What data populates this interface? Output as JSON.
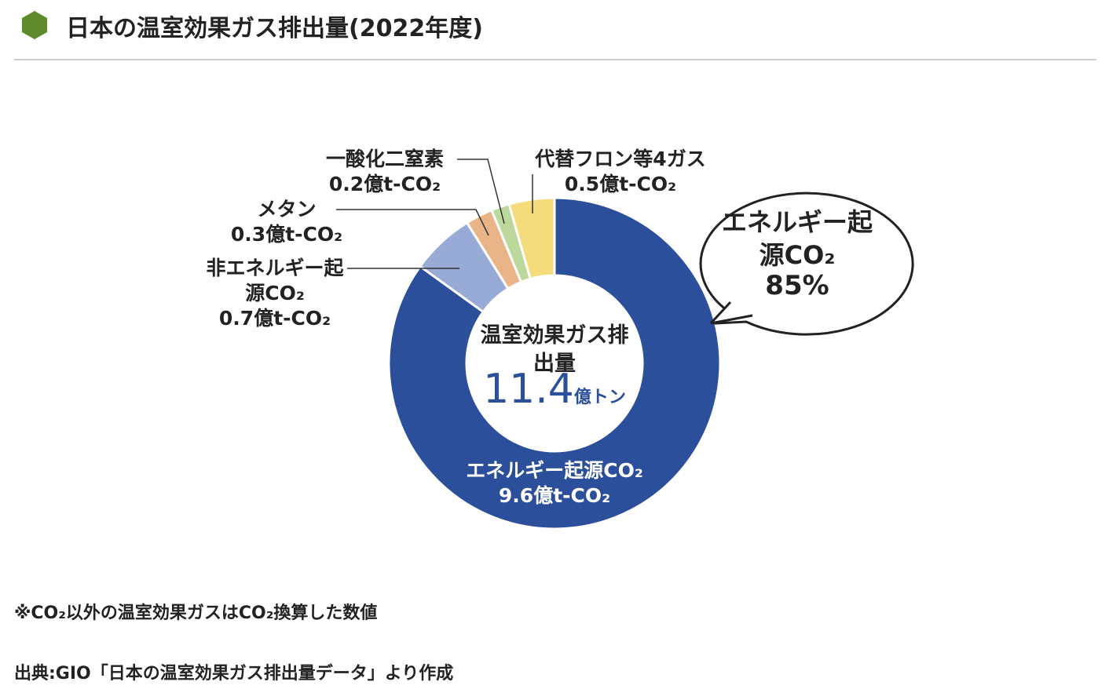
{
  "header": {
    "title": "日本の温室効果ガス排出量(2022年度)"
  },
  "chart_data": {
    "type": "donut",
    "categories": [
      "エネルギー起源CO₂",
      "非エネルギー起源CO₂",
      "メタン",
      "一酸化二窒素",
      "代替フロン等4ガス"
    ],
    "values": [
      9.6,
      0.7,
      0.3,
      0.2,
      0.5
    ],
    "value_labels": [
      "9.6億t-CO₂",
      "0.7億t-CO₂",
      "0.3億t-CO₂",
      "0.2億t-CO₂",
      "0.5億t-CO₂"
    ],
    "colors": [
      "#2c4f9b",
      "#98aad6",
      "#eab489",
      "#bcd89c",
      "#f4dc7d"
    ],
    "center": {
      "title": "温室効果ガス排出量",
      "total": "11.4",
      "unit": "億トン"
    },
    "callout": {
      "text": "エネルギー起源CO₂",
      "value": "85%"
    }
  },
  "notes": [
    "※CO₂以外の温室効果ガスはCO₂換算した数値",
    "出典:GIO「日本の温室効果ガス排出量データ」より作成"
  ]
}
